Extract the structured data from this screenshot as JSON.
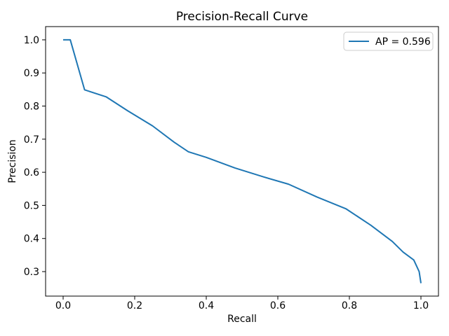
{
  "chart_data": {
    "type": "line",
    "title": "Precision-Recall Curve",
    "xlabel": "Recall",
    "ylabel": "Precision",
    "grid": false,
    "legend": {
      "position": "upper right",
      "entries": [
        {
          "label": "AP = 0.596",
          "color": "#1f77b4"
        }
      ]
    },
    "xlim": [
      -0.049,
      1.049
    ],
    "ylim": [
      0.226,
      1.04
    ],
    "xticks": [
      0.0,
      0.2,
      0.4,
      0.6,
      0.8,
      1.0
    ],
    "xtick_labels": [
      "0.0",
      "0.2",
      "0.4",
      "0.6",
      "0.8",
      "1.0"
    ],
    "yticks": [
      0.3,
      0.4,
      0.5,
      0.6,
      0.7,
      0.8,
      0.9,
      1.0
    ],
    "ytick_labels": [
      "0.3",
      "0.4",
      "0.5",
      "0.6",
      "0.7",
      "0.8",
      "0.9",
      "1.0"
    ],
    "series": [
      {
        "name": "AP = 0.596",
        "color": "#1f77b4",
        "x": [
          0.0,
          0.02,
          0.06,
          0.12,
          0.18,
          0.25,
          0.31,
          0.35,
          0.4,
          0.48,
          0.56,
          0.63,
          0.71,
          0.79,
          0.86,
          0.92,
          0.95,
          0.98,
          0.995,
          1.0
        ],
        "y": [
          1.0,
          1.0,
          0.849,
          0.828,
          0.786,
          0.74,
          0.691,
          0.662,
          0.645,
          0.613,
          0.586,
          0.564,
          0.525,
          0.49,
          0.44,
          0.391,
          0.359,
          0.335,
          0.3,
          0.265
        ]
      }
    ]
  },
  "colors": {
    "line": "#1f77b4",
    "spine": "#000000",
    "tick": "#000000",
    "text": "#000000",
    "legend_border": "#cccccc",
    "background": "#ffffff"
  }
}
